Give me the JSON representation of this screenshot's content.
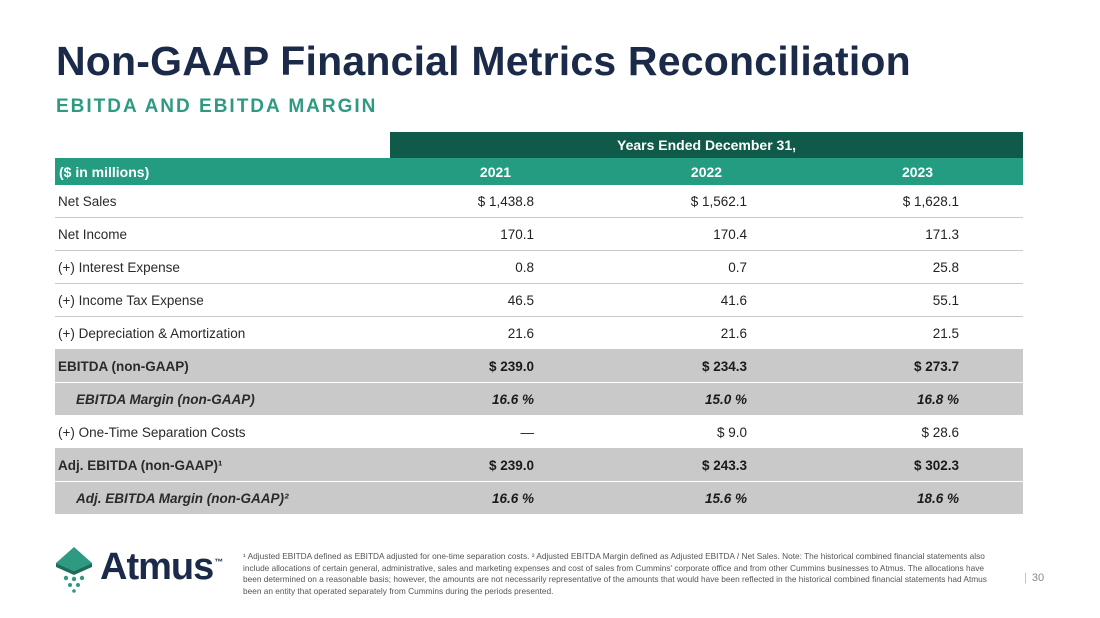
{
  "slide": {
    "title": "Non-GAAP Financial Metrics Reconciliation",
    "subtitle": "EBITDA AND EBITDA MARGIN"
  },
  "table": {
    "group_header": "Years Ended December 31,",
    "unit_label": "($ in millions)",
    "years": [
      "2021",
      "2022",
      "2023"
    ],
    "rows": [
      {
        "label": "Net Sales",
        "values": [
          "$ 1,438.8",
          "$ 1,562.1",
          "$ 1,628.1"
        ]
      },
      {
        "label": "Net Income",
        "values": [
          "170.1",
          "170.4",
          "171.3"
        ]
      },
      {
        "label": "(+) Interest Expense",
        "values": [
          "0.8",
          "0.7",
          "25.8"
        ]
      },
      {
        "label": "(+) Income Tax Expense",
        "values": [
          "46.5",
          "41.6",
          "55.1"
        ]
      },
      {
        "label": "(+) Depreciation & Amortization",
        "values": [
          "21.6",
          "21.6",
          "21.5"
        ]
      },
      {
        "label": "EBITDA (non-GAAP)",
        "values": [
          "$ 239.0",
          "$ 234.3",
          "$ 273.7"
        ]
      },
      {
        "label": "EBITDA Margin (non-GAAP)",
        "values": [
          "16.6 %",
          "15.0 %",
          "16.8 %"
        ]
      },
      {
        "label": "(+) One-Time Separation Costs",
        "values": [
          "—",
          "$ 9.0",
          "$ 28.6"
        ]
      },
      {
        "label": "Adj. EBITDA (non-GAAP)¹",
        "values": [
          "$ 239.0",
          "$ 243.3",
          "$ 302.3"
        ]
      },
      {
        "label": "Adj. EBITDA Margin (non-GAAP)²",
        "values": [
          "16.6 %",
          "15.6 %",
          "18.6 %"
        ]
      }
    ]
  },
  "brand": {
    "logo_text": "Atmus",
    "trademark": "™"
  },
  "footnote": "¹ Adjusted EBITDA defined as EBITDA adjusted for one-time separation costs. ² Adjusted EBITDA Margin defined as Adjusted EBITDA / Net Sales. Note: The historical combined financial statements also include allocations of certain general, administrative, sales and marketing expenses and cost of sales from Cummins' corporate office and from other Cummins businesses to Atmus. The allocations have been determined on a reasonable basis; however, the amounts are not necessarily representative of the amounts that would have been reflected in the historical combined financial statements had Atmus been an entity that operated separately from Cummins during the periods presented.",
  "page_number": "30",
  "colors": {
    "title": "#1c2a4a",
    "accent_green": "#2f9a82",
    "dark_green": "#0f5a48",
    "header_green": "#239c82",
    "subtotal_gray": "#c9c9c9"
  }
}
